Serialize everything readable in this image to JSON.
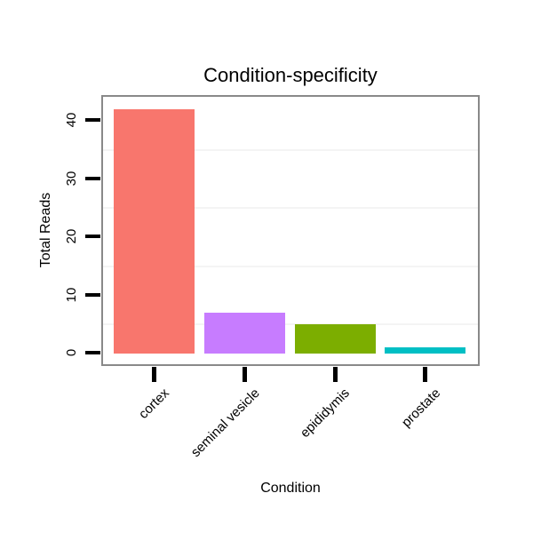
{
  "chart_data": {
    "type": "bar",
    "title": "Condition-specificity",
    "xlabel": "Condition",
    "ylabel": "Total Reads",
    "categories": [
      "cortex",
      "seminal vesicle",
      "epididymis",
      "prostate"
    ],
    "values": [
      42,
      7,
      5,
      1
    ],
    "bar_colors": [
      "#F8766D",
      "#C77CFF",
      "#7CAE00",
      "#00BFC4"
    ],
    "y_ticks": [
      0,
      10,
      20,
      30,
      40
    ],
    "minor_gridlines": [
      5,
      15,
      25,
      35
    ],
    "ylim": [
      0,
      44
    ],
    "grid": "faint horizontal minor gridlines only",
    "legend": "none",
    "colors": {
      "panel_border": "#898989",
      "gridline": "#f4f4f4",
      "tick": "#000000",
      "text": "#000000",
      "background": "#ffffff"
    }
  }
}
